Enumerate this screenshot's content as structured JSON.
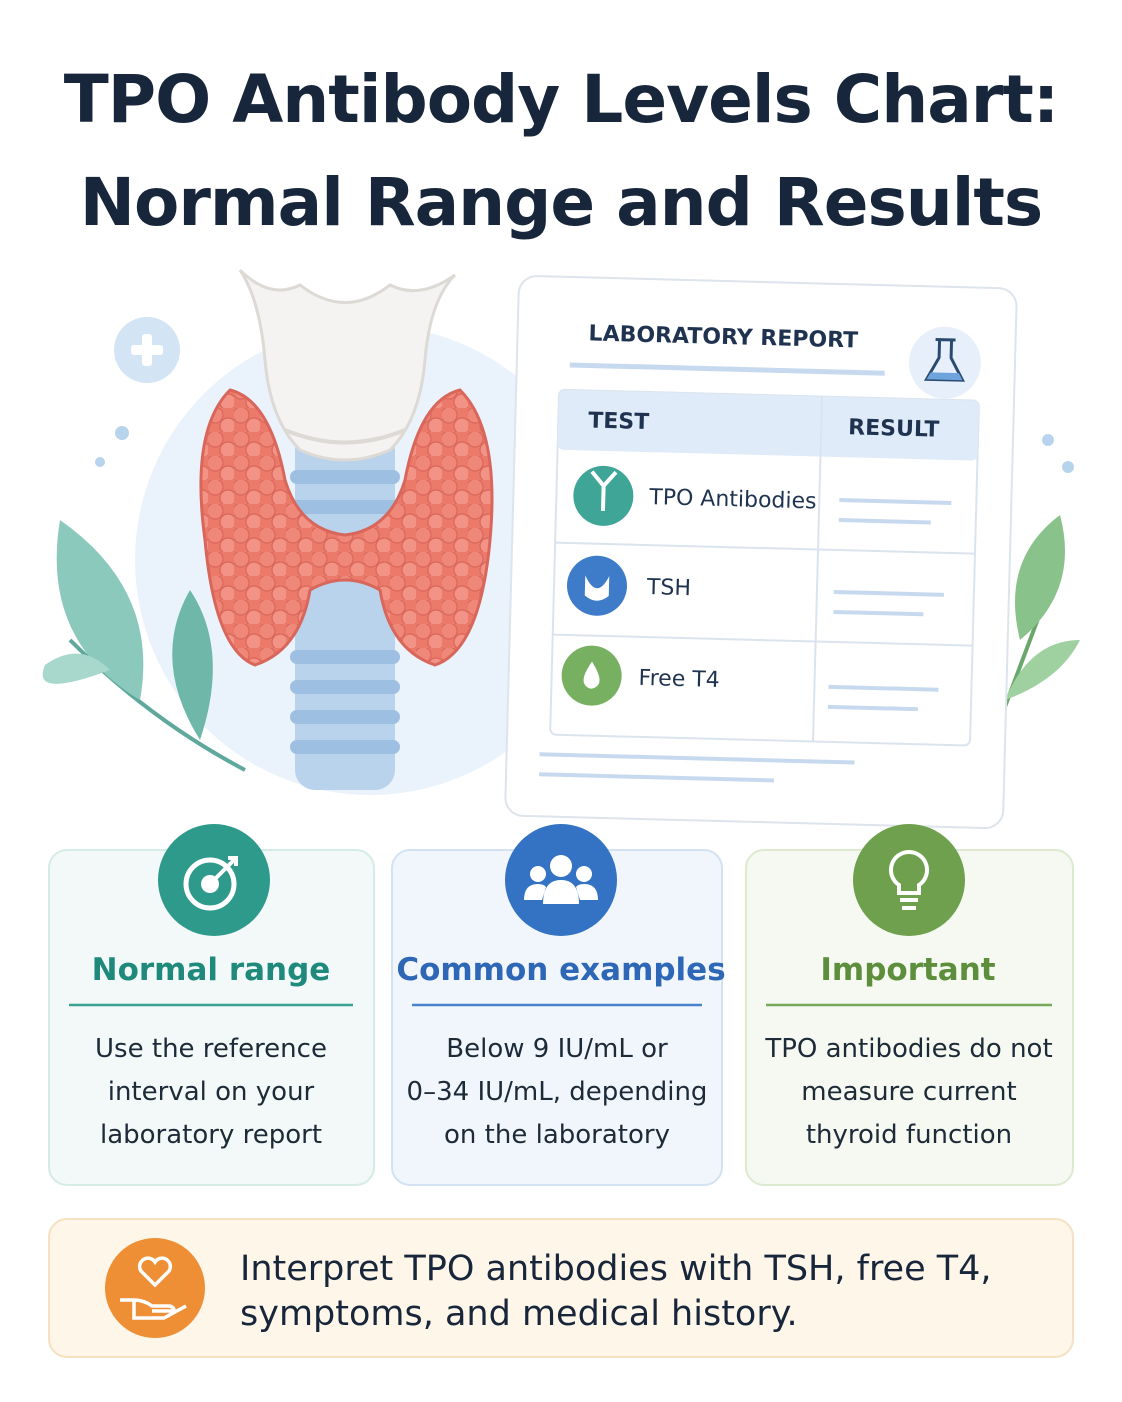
{
  "header": {
    "title": [
      "TPO Antibody Levels Chart:",
      "Normal Range and Results"
    ]
  },
  "report": {
    "title": "LABORATORY REPORT",
    "columns": [
      "TEST",
      "RESULT"
    ],
    "rows": [
      "TPO Antibodies",
      "TSH",
      "Free T4"
    ]
  },
  "cards": [
    {
      "title": "Normal range",
      "lines": [
        "Use the reference",
        "interval on your",
        "laboratory report"
      ]
    },
    {
      "title": "Common examples",
      "lines": [
        "Below 9 IU/mL or",
        "0–34 IU/mL, depending",
        "on the laboratory"
      ]
    },
    {
      "title": "Important",
      "lines": [
        "TPO antibodies do not",
        "measure current",
        "thyroid function"
      ]
    }
  ],
  "footer": {
    "lines": [
      "Interpret TPO antibodies with TSH, free T4,",
      "symptoms, and medical history."
    ]
  }
}
